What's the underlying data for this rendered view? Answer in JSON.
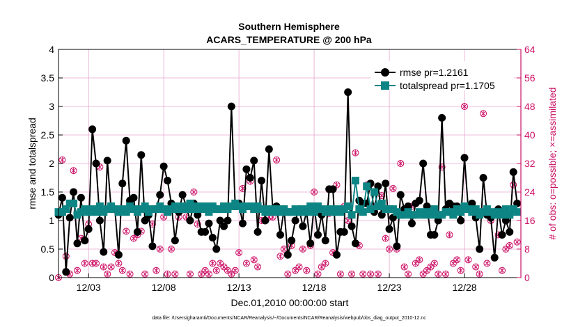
{
  "chart_data": {
    "type": "line",
    "title": "Southern Hemisphere",
    "subtitle": "ACARS_TEMPERATURE @ 200 hPa",
    "xlabel": "Dec.01,2010 00:00:00 start",
    "ylabel_left": "rmse and totalspread",
    "ylabel_right": "# of obs: o=possible; ×=assimilated",
    "footnote": "data file: /Users/gharamti/Documents/NCAR/Reanalysis/~/Documents/NCAR/Reanalysis/webpub/obs_diag_output_2010-12.nc",
    "xlim": [
      0,
      123
    ],
    "x_ticks": [
      {
        "x": 8,
        "label": "12/03"
      },
      {
        "x": 28,
        "label": "12/08"
      },
      {
        "x": 48,
        "label": "12/13"
      },
      {
        "x": 68,
        "label": "12/18"
      },
      {
        "x": 88,
        "label": "12/23"
      },
      {
        "x": 108,
        "label": "12/28"
      }
    ],
    "ylim_left": [
      0,
      4
    ],
    "y_ticks_left": [
      0,
      0.5,
      1,
      1.5,
      2,
      2.5,
      3,
      3.5,
      4
    ],
    "ylim_right": [
      0,
      64
    ],
    "y_ticks_right": [
      0,
      8,
      16,
      24,
      32,
      40,
      48,
      56,
      64
    ],
    "colors": {
      "rmse": "#000000",
      "spread": "#0e8585",
      "obs": "#cc1166",
      "grid": "#e6a6cf",
      "axis": "#000000"
    },
    "series": [
      {
        "name": "rmse",
        "legend": "rmse pr=1.2161",
        "values": [
          1.1,
          1.4,
          0.1,
          1.05,
          1.5,
          0.6,
          1.4,
          0.65,
          0.85,
          2.6,
          2.0,
          1.0,
          0.45,
          2.05,
          1.2,
          1.2,
          0.4,
          1.65,
          2.4,
          1.35,
          1.4,
          0.8,
          2.15,
          1.0,
          1.1,
          0.55,
          1.2,
          1.45,
          1.95,
          1.7,
          1.3,
          0.65,
          1.15,
          1.45,
          1.25,
          1.0,
          1.3,
          1.1,
          0.8,
          0.8,
          0.95,
          0.7,
          0.5,
          1.0,
          0.9,
          1.0,
          3.0,
          1.25,
          1.3,
          0.95,
          1.9,
          1.75,
          2.05,
          0.8,
          1.7,
          1.0,
          2.25,
          1.2,
          1.25,
          0.75,
          1.2,
          0.4,
          0.65,
          1.0,
          1.2,
          0.9,
          1.15,
          0.6,
          1.25,
          0.75,
          1.1,
          0.65,
          1.55,
          1.55,
          0.4,
          0.8,
          0.8,
          3.25,
          0.9,
          0.6,
          1.35,
          1.3,
          1.3,
          1.65,
          1.15,
          1.6,
          1.1,
          1.65,
          0.85,
          1.05,
          0.55,
          1.45,
          1.2,
          1.25,
          0.95,
          1.3,
          1.35,
          2.0,
          1.25,
          0.75,
          0.75,
          1.0,
          2.8,
          1.2,
          1.3,
          1.25,
          1.25,
          1.0,
          2.1,
          1.2,
          1.3,
          1.05,
          0.5,
          1.75,
          1.1,
          1.05,
          0.35,
          1.2,
          0.75,
          1.0,
          0.8,
          1.85,
          1.3
        ]
      },
      {
        "name": "totalspread",
        "legend": "totalspread pr=1.1705",
        "values": [
          1.15,
          1.15,
          1.2,
          1.3,
          1.3,
          1.1,
          1.15,
          1.2,
          1.15,
          1.2,
          1.15,
          1.25,
          1.15,
          1.2,
          1.25,
          1.2,
          1.15,
          1.2,
          1.15,
          1.25,
          1.2,
          1.15,
          1.2,
          1.25,
          1.15,
          1.2,
          1.2,
          1.25,
          1.2,
          1.15,
          1.2,
          1.25,
          1.2,
          1.25,
          1.2,
          1.3,
          1.2,
          1.25,
          1.2,
          1.25,
          1.15,
          1.25,
          1.2,
          1.2,
          1.25,
          1.2,
          1.25,
          1.3,
          1.25,
          1.2,
          1.25,
          1.25,
          1.2,
          1.25,
          1.2,
          1.15,
          1.2,
          1.15,
          1.2,
          1.15,
          1.2,
          1.15,
          1.15,
          1.2,
          1.15,
          1.2,
          1.15,
          1.25,
          1.15,
          1.25,
          1.2,
          1.15,
          1.2,
          1.15,
          1.2,
          1.15,
          1.2,
          1.25,
          1.1,
          1.7,
          1.2,
          1.15,
          1.6,
          1.2,
          1.5,
          1.25,
          1.3,
          1.2,
          1.2,
          1.2,
          1.15,
          1.1,
          1.1,
          1.15,
          1.1,
          1.1,
          1.15,
          1.1,
          1.15,
          1.1,
          1.2,
          1.1,
          1.1,
          1.15,
          1.15,
          1.1,
          1.2,
          1.15,
          1.25,
          1.2,
          1.15,
          1.2,
          1.1,
          1.15,
          1.2,
          1.15,
          1.1,
          1.15,
          1.1,
          1.2,
          1.1,
          1.2,
          1.15
        ]
      }
    ],
    "obs_count": [
      0,
      33,
      6,
      1,
      30,
      2,
      11,
      4,
      15,
      4,
      4,
      31,
      3,
      1,
      3,
      7,
      4,
      2,
      13,
      1,
      11,
      12,
      13,
      1,
      19,
      15,
      2,
      8,
      17,
      1,
      8,
      1,
      17,
      19,
      17,
      1,
      24,
      15,
      1,
      2,
      1,
      4,
      2,
      4,
      3,
      2,
      1,
      2,
      7,
      25,
      4,
      27,
      5,
      3,
      16,
      16,
      17,
      17,
      33,
      6,
      8,
      1,
      9,
      2,
      3,
      8,
      2,
      9,
      24,
      1,
      3,
      4,
      18,
      7,
      26,
      1,
      20,
      16,
      1,
      35,
      9,
      1,
      26,
      1,
      20,
      1,
      23,
      11,
      8,
      25,
      8,
      32,
      3,
      1,
      20,
      4,
      5,
      1,
      2,
      3,
      4,
      1,
      31,
      1,
      12,
      4,
      5,
      2,
      48,
      5,
      19,
      3,
      1,
      46,
      4,
      16,
      18,
      12,
      2,
      8,
      9,
      26,
      10
    ]
  }
}
